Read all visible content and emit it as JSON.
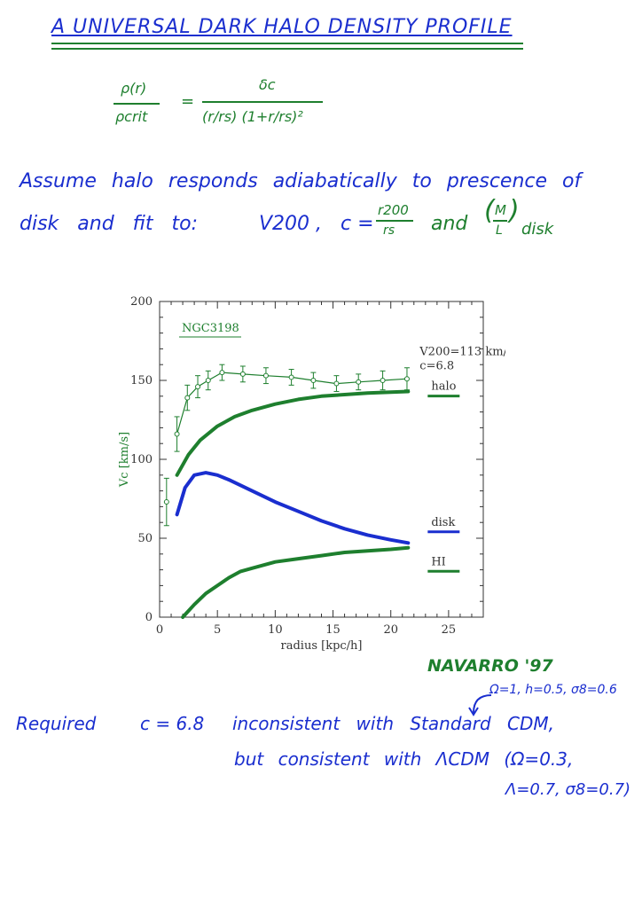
{
  "title": "A UNIVERSAL DARK HALO DENSITY PROFILE",
  "formula": {
    "lhs_num": "ρ(r)",
    "lhs_den": "ρcrit",
    "equals": "=",
    "rhs_num": "δc",
    "rhs_den": "(r/rs) (1+r/rs)²"
  },
  "assume": {
    "line1": "Assume halo responds adiabatically to prescence of",
    "line2_a": "disk and fit to:",
    "line2_b": "V200 ,",
    "line2_c": "c =",
    "c_num": "r200",
    "c_den": "rs",
    "line2_d": "and",
    "ml_num": "M",
    "ml_den": "L",
    "ml_sub": "disk"
  },
  "chart_data": {
    "type": "line",
    "title": "NGC3198",
    "xlabel": "radius [kpc/h]",
    "ylabel": "Vc [km/s]",
    "xlim": [
      0,
      28
    ],
    "ylim": [
      0,
      200
    ],
    "xticks": [
      "0",
      "5",
      "10",
      "15",
      "20",
      "25"
    ],
    "yticks": [
      "0",
      "50",
      "100",
      "150",
      "200"
    ],
    "annotation_v200": "V200=113 km/s",
    "annotation_c": "c=6.8",
    "observed": {
      "x": [
        0.6,
        1.5,
        2.4,
        3.3,
        4.2,
        5.4,
        7.2,
        9.2,
        11.4,
        13.3,
        15.3,
        17.2,
        19.3,
        21.4
      ],
      "y": [
        73,
        116,
        139,
        146,
        150,
        155,
        154,
        153,
        152,
        150,
        148,
        149,
        150,
        151
      ],
      "err": [
        15,
        11,
        8,
        7,
        6,
        5,
        5,
        5,
        5,
        5,
        5,
        5,
        6,
        7
      ]
    },
    "series": [
      {
        "name": "halo",
        "color": "#1e7f2e",
        "x": [
          1.5,
          2.5,
          3.5,
          5,
          6.5,
          8,
          10,
          12,
          14,
          16,
          18,
          20,
          21.5
        ],
        "y": [
          90,
          103,
          112,
          121,
          127,
          131,
          135,
          138,
          140,
          141,
          142,
          142.5,
          143
        ]
      },
      {
        "name": "disk",
        "color": "#1a2ecf",
        "x": [
          1.5,
          2.2,
          3,
          4,
          5,
          6,
          8,
          10,
          12,
          14,
          16,
          18,
          20,
          21.5
        ],
        "y": [
          65,
          82,
          90,
          91.5,
          90,
          87,
          80,
          73,
          67,
          61,
          56,
          52,
          49,
          47
        ]
      },
      {
        "name": "HI",
        "color": "#1e7f2e",
        "x": [
          2,
          3,
          4,
          5,
          6,
          7,
          8,
          10,
          12,
          14,
          16,
          18,
          20,
          21.5
        ],
        "y": [
          0,
          8,
          15,
          20,
          25,
          29,
          31,
          35,
          37,
          39,
          41,
          42,
          43,
          44
        ]
      }
    ]
  },
  "notes": {
    "author": "NAVARRO '97",
    "params_scdm": "Ω=1, h=0.5, σ8=0.6",
    "required_a": "Required",
    "required_b": "c = 6.8",
    "required_c": "inconsistent with Standard CDM,",
    "lcdm_a": "but consistent with ΛCDM (Ω=0.3,",
    "lcdm_b": "Λ=0.7, σ8=0.7)"
  },
  "colors": {
    "blue_ink": "#1a2ecf",
    "green_ink": "#1e7f2e"
  }
}
